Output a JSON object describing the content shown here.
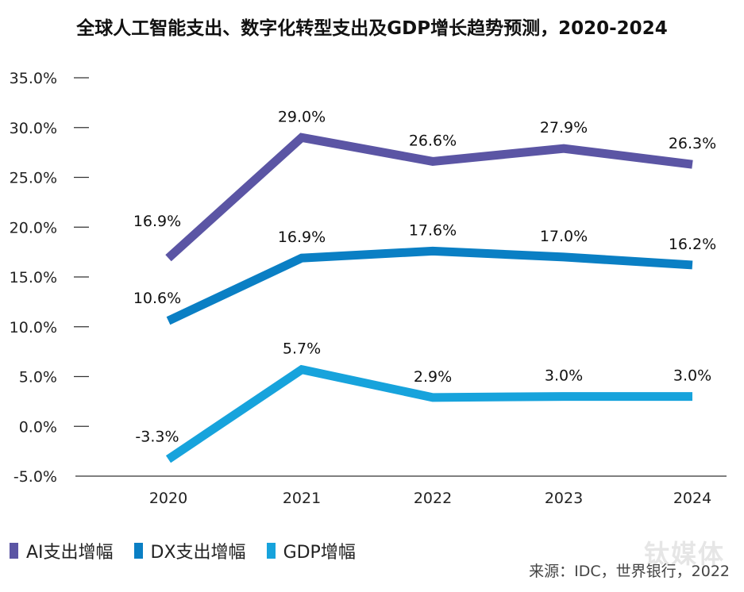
{
  "chart_data": {
    "type": "line",
    "title": "全球人工智能支出、数字化转型支出及GDP增长趋势预测，2020-2024",
    "categories": [
      "2020",
      "2021",
      "2022",
      "2023",
      "2024"
    ],
    "yticks": [
      "35.0%",
      "30.0%",
      "25.0%",
      "20.0%",
      "15.0%",
      "10.0%",
      "5.0%",
      "0.0%",
      "-5.0%"
    ],
    "ylim": [
      -5,
      35
    ],
    "grid": false,
    "legend_position": "bottom-left",
    "series": [
      {
        "name": "AI支出增幅",
        "color": "#5b55a4",
        "values": [
          16.9,
          29.0,
          26.6,
          27.9,
          26.3
        ],
        "labels": [
          "16.9%",
          "29.0%",
          "26.6%",
          "27.9%",
          "26.3%"
        ]
      },
      {
        "name": "DX支出增幅",
        "color": "#0a7fc4",
        "values": [
          10.6,
          16.9,
          17.6,
          17.0,
          16.2
        ],
        "labels": [
          "10.6%",
          "16.9%",
          "17.6%",
          "17.0%",
          "16.2%"
        ]
      },
      {
        "name": "GDP增幅",
        "color": "#17a3dc",
        "values": [
          -3.3,
          5.7,
          2.9,
          3.0,
          3.0
        ],
        "labels": [
          "-3.3%",
          "5.7%",
          "2.9%",
          "3.0%",
          "3.0%"
        ]
      }
    ]
  },
  "source": "来源：IDC，世界银行，2022",
  "watermark": "钛媒体"
}
